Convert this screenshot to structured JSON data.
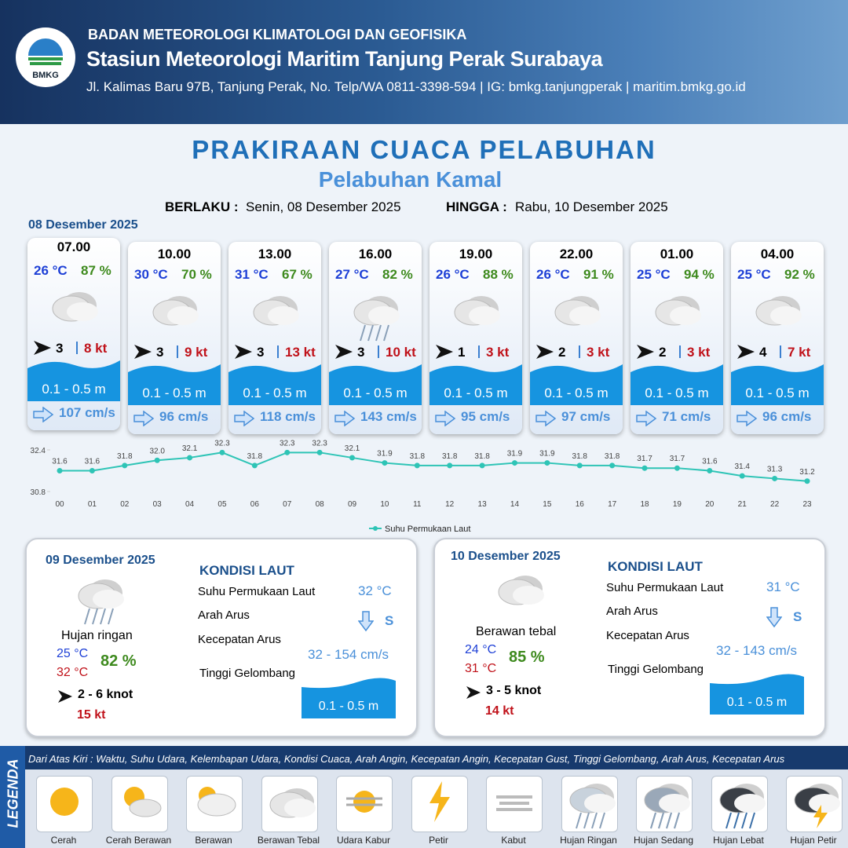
{
  "header": {
    "logo": "BMKG",
    "agency": "BADAN METEOROLOGI KLIMATOLOGI DAN GEOFISIKA",
    "station": "Stasiun Meteorologi Maritim Tanjung Perak Surabaya",
    "address": "Jl. Kalimas Baru 97B, Tanjung Perak, No. Telp/WA 0811-3398-594 | IG: bmkg.tanjungperak | maritim.bmkg.go.id"
  },
  "title": "PRAKIRAAN CUACA PELABUHAN",
  "subtitle": "Pelabuhan Kamal",
  "validity": {
    "from_label": "BERLAKU :",
    "from": "Senin, 08 Desember 2025",
    "to_label": "HINGGA :",
    "to": "Rabu, 10 Desember 2025"
  },
  "day1": {
    "date": "08 Desember 2025",
    "forecasts": [
      {
        "time": "07.00",
        "temp": "26 °C",
        "humidity": "87 %",
        "wind": "3",
        "gust": "8 kt",
        "wave": "0.1 - 0.5 m",
        "current": "107 cm/s"
      },
      {
        "time": "10.00",
        "temp": "30 °C",
        "humidity": "70 %",
        "wind": "3",
        "gust": "9 kt",
        "wave": "0.1 - 0.5 m",
        "current": "96 cm/s"
      },
      {
        "time": "13.00",
        "temp": "31 °C",
        "humidity": "67 %",
        "wind": "3",
        "gust": "13 kt",
        "wave": "0.1 - 0.5 m",
        "current": "118 cm/s"
      },
      {
        "time": "16.00",
        "temp": "27 °C",
        "humidity": "82 %",
        "wind": "3",
        "gust": "10 kt",
        "wave": "0.1 - 0.5 m",
        "current": "143 cm/s"
      },
      {
        "time": "19.00",
        "temp": "26 °C",
        "humidity": "88 %",
        "wind": "1",
        "gust": "3 kt",
        "wave": "0.1 - 0.5 m",
        "current": "95 cm/s"
      },
      {
        "time": "22.00",
        "temp": "26 °C",
        "humidity": "91 %",
        "wind": "2",
        "gust": "3 kt",
        "wave": "0.1 - 0.5 m",
        "current": "97 cm/s"
      },
      {
        "time": "01.00",
        "temp": "25 °C",
        "humidity": "94 %",
        "wind": "2",
        "gust": "3 kt",
        "wave": "0.1 - 0.5 m",
        "current": "71 cm/s"
      },
      {
        "time": "04.00",
        "temp": "25 °C",
        "humidity": "92 %",
        "wind": "4",
        "gust": "7 kt",
        "wave": "0.1 - 0.5 m",
        "current": "96 cm/s"
      }
    ]
  },
  "sst_chart": {
    "type": "line",
    "categories": [
      "00",
      "01",
      "02",
      "03",
      "04",
      "05",
      "06",
      "07",
      "08",
      "09",
      "10",
      "11",
      "12",
      "13",
      "14",
      "15",
      "16",
      "17",
      "18",
      "19",
      "20",
      "21",
      "22",
      "23"
    ],
    "series": [
      {
        "name": "Suhu Permukaan Laut",
        "color": "#2ec4b6",
        "values": [
          31.6,
          31.6,
          31.8,
          32.0,
          32.1,
          32.3,
          31.8,
          32.3,
          32.3,
          32.1,
          31.9,
          31.8,
          31.8,
          31.8,
          31.9,
          31.9,
          31.8,
          31.8,
          31.7,
          31.7,
          31.6,
          31.4,
          31.3,
          31.2
        ],
        "value_labels": [
          "31.6",
          "31.6",
          "31.8",
          "32.0",
          "32.1",
          "32.3",
          "31.8",
          "32.3",
          "32.3",
          "32.1",
          "31.9",
          "31.8",
          "31.8",
          "31.8",
          "31.9",
          "31.9",
          "31.8",
          "31.8",
          "31.7",
          "31.7",
          "31.6",
          "31.4",
          "31.3",
          "31.2"
        ]
      }
    ],
    "ylim": [
      30.8,
      32.4
    ],
    "yticks": [
      30.8,
      32.4
    ]
  },
  "daily": [
    {
      "date": "09 Desember 2025",
      "condition": "Hujan ringan",
      "temp_min": "25 °C",
      "temp_max": "32 °C",
      "humidity": "82 %",
      "wind": "2  - 6 knot",
      "gust": "15 kt",
      "sea": {
        "heading": "KONDISI LAUT",
        "sst_label": "Suhu Permukaan Laut",
        "sst": "32 °C",
        "current_dir_label": "Arah Arus",
        "current_dir": "S",
        "current_speed_label": "Kecepatan Arus",
        "current_speed": "32  - 154 cm/s",
        "wave_label": "Tinggi Gelombang",
        "wave": "0.1 - 0.5 m"
      }
    },
    {
      "date": "10 Desember 2025",
      "condition": "Berawan tebal",
      "temp_min": "24 °C",
      "temp_max": "31 °C",
      "humidity": "85 %",
      "wind": "3  - 5 knot",
      "gust": "14 kt",
      "sea": {
        "heading": "KONDISI LAUT",
        "sst_label": "Suhu Permukaan Laut",
        "sst": "31 °C",
        "current_dir_label": "Arah Arus",
        "current_dir": "S",
        "current_speed_label": "Kecepatan Arus",
        "current_speed": "32  - 143 cm/s",
        "wave_label": "Tinggi Gelombang",
        "wave": "0.1 - 0.5 m"
      }
    }
  ],
  "legend": {
    "title": "LEGENDA",
    "description": "Dari Atas Kiri : Waktu, Suhu Udara, Kelembapan Udara, Kondisi Cuaca, Arah Angin, Kecepatan Angin, Kecepatan Gust, Tinggi Gelombang, Arah Arus, Kecepatan Arus",
    "items": [
      "Cerah",
      "Cerah Berawan",
      "Berawan",
      "Berawan Tebal",
      "Udara Kabur",
      "Petir",
      "Kabut",
      "Hujan Ringan",
      "Hujan Sedang",
      "Hujan Lebat",
      "Hujan Petir"
    ]
  }
}
